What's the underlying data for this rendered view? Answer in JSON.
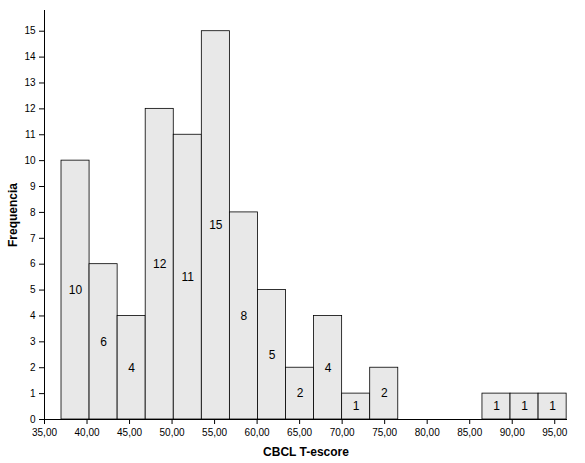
{
  "chart_data": {
    "type": "histogram",
    "x_label": "CBCL T-escore",
    "y_label": "Frequencia",
    "bins": [
      37,
      40.3,
      43.6,
      46.9,
      50.2,
      53.5,
      56.8,
      60.1,
      63.4,
      66.7,
      70,
      73.3,
      76.6,
      79.9,
      83.2,
      86.5,
      89.8,
      93.1,
      96.4
    ],
    "values": [
      10,
      6,
      4,
      12,
      11,
      15,
      8,
      5,
      2,
      4,
      1,
      2,
      0,
      0,
      0,
      1,
      1,
      1
    ],
    "color": "#e8e8e8",
    "data_labels": true,
    "grid": false,
    "xlim": [
      35,
      96.5
    ],
    "xticks": [
      {
        "value": 35,
        "label": "35,00"
      },
      {
        "value": 40,
        "label": "40,00"
      },
      {
        "value": 45,
        "label": "45,00"
      },
      {
        "value": 50,
        "label": "50,00"
      },
      {
        "value": 55,
        "label": "55,00"
      },
      {
        "value": 60,
        "label": "60,00"
      },
      {
        "value": 65,
        "label": "65,00"
      },
      {
        "value": 70,
        "label": "70,00"
      },
      {
        "value": 75,
        "label": "75,00"
      },
      {
        "value": 80,
        "label": "80,00"
      },
      {
        "value": 85,
        "label": "85,00"
      },
      {
        "value": 90,
        "label": "90,00"
      },
      {
        "value": 95,
        "label": "95,00"
      }
    ],
    "ylim": [
      0,
      15.8
    ],
    "yticks": [
      0,
      1,
      2,
      3,
      4,
      5,
      6,
      7,
      8,
      9,
      10,
      11,
      12,
      13,
      14,
      15
    ]
  }
}
